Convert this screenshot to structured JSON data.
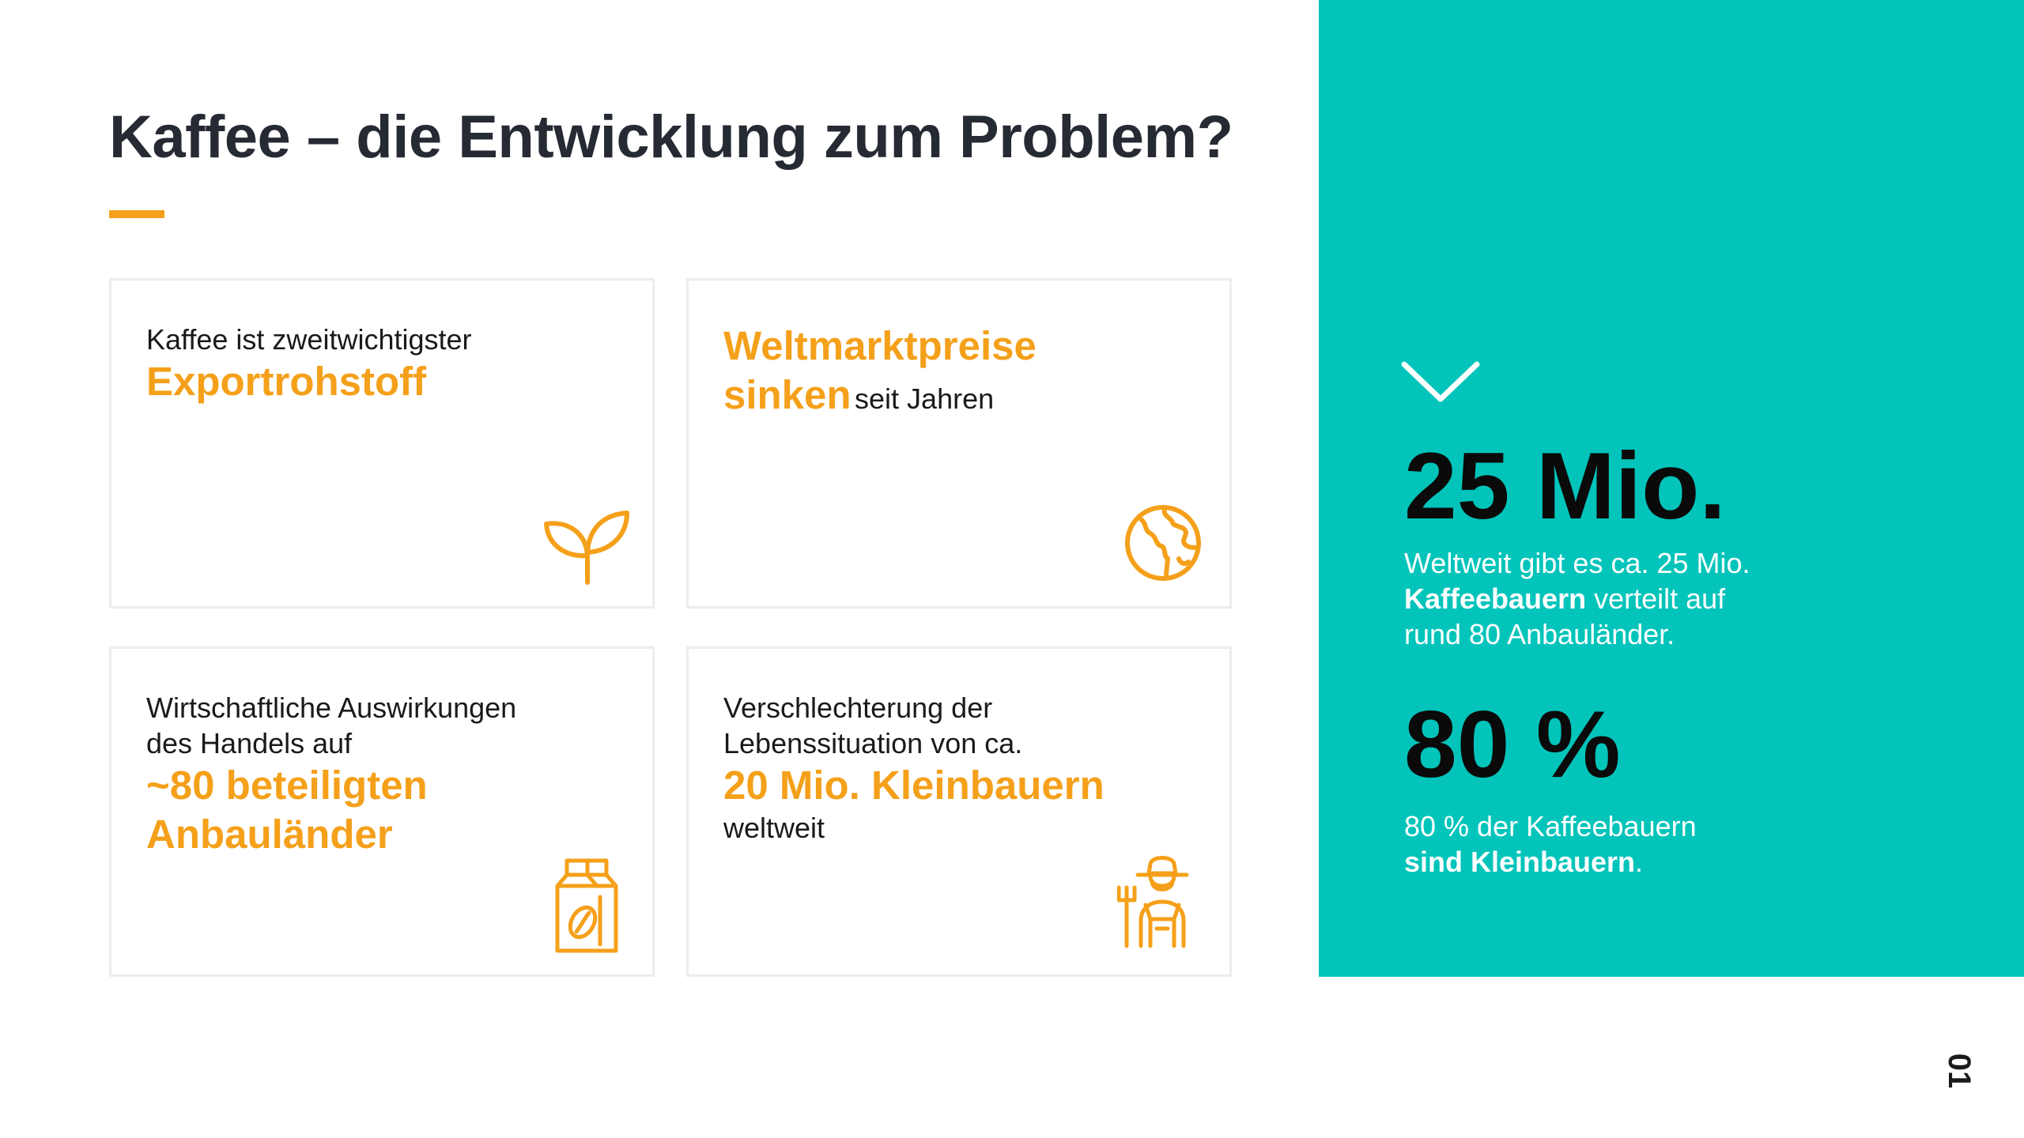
{
  "title": "Kaffee – die Entwicklung zum Problem?",
  "colors": {
    "accent": "#f5a01a",
    "panel": "#02c4ba",
    "title": "#262a33"
  },
  "cards": [
    {
      "small": "Kaffee ist zweitwichtigster",
      "big": "Exportrohstoff",
      "icon": "plant-sprout-icon"
    },
    {
      "big_line1": "Weltmarktpreise",
      "big_line2": "sinken",
      "small": "seit Jahren",
      "icon": "globe-icon"
    },
    {
      "small_line1": "Wirtschaftliche Auswirkungen",
      "small_line2": "des Handels auf",
      "big_line1": "~80 beteiligten",
      "big_line2": "Anbauländer",
      "icon": "coffee-bag-icon"
    },
    {
      "small_line1": "Verschlechterung der",
      "small_line2": "Lebenssituation von ca.",
      "big": "20 Mio. Kleinbauern",
      "small_after": "weltweit",
      "icon": "farmer-icon"
    }
  ],
  "panel": {
    "icon": "chevron-down-icon",
    "stat1": "25 Mio.",
    "desc1_part1": "Weltweit gibt es ca. 25 Mio.",
    "desc1_bold": "Kaffeebauern",
    "desc1_part2": " verteilt auf",
    "desc1_part3": "rund 80 Anbauländer.",
    "stat2": "80 %",
    "desc2_part1": "80 % der Kaffeebauern",
    "desc2_bold": "sind Kleinbauern",
    "desc2_part2": "."
  },
  "page_number": "01"
}
